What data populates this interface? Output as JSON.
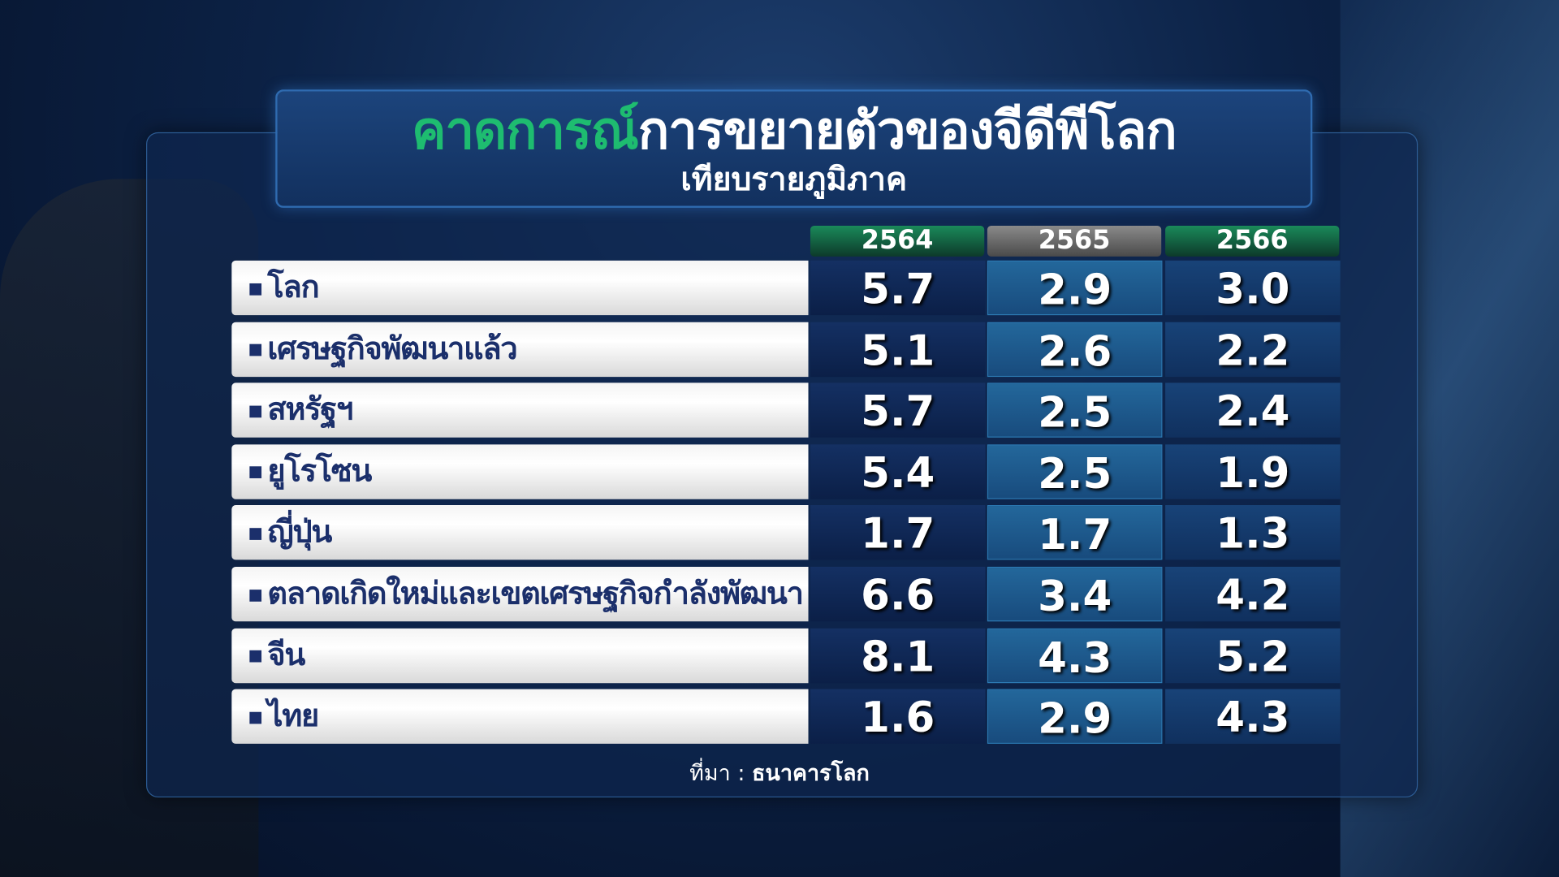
{
  "title": {
    "highlight": "คาดการณ์",
    "rest": "การขยายตัวของจีดีพีโลก",
    "subtitle": "เทียบรายภูมิภาค"
  },
  "colors": {
    "highlight": "#1ebc70",
    "header_green": "#1a8a5a",
    "header_grey": "#6b6b6b",
    "label_text": "#1b2f6b"
  },
  "chart_data": {
    "type": "table",
    "columns": [
      "2564",
      "2565",
      "2566"
    ],
    "rows": [
      {
        "label": "โลก",
        "values": [
          "5.7",
          "2.9",
          "3.0"
        ]
      },
      {
        "label": "เศรษฐกิจพัฒนาแล้ว",
        "values": [
          "5.1",
          "2.6",
          "2.2"
        ]
      },
      {
        "label": "สหรัฐฯ",
        "values": [
          "5.7",
          "2.5",
          "2.4"
        ]
      },
      {
        "label": "ยูโรโซน",
        "values": [
          "5.4",
          "2.5",
          "1.9"
        ]
      },
      {
        "label": "ญี่ปุ่น",
        "values": [
          "1.7",
          "1.7",
          "1.3"
        ]
      },
      {
        "label": "ตลาดเกิดใหม่และเขตเศรษฐกิจกำลังพัฒนา",
        "values": [
          "6.6",
          "3.4",
          "4.2"
        ]
      },
      {
        "label": "จีน",
        "values": [
          "8.1",
          "4.3",
          "5.2"
        ]
      },
      {
        "label": "ไทย",
        "values": [
          "1.6",
          "2.9",
          "4.3"
        ]
      }
    ]
  },
  "source": {
    "prefix": "ที่มา :",
    "name": "ธนาคารโลก"
  }
}
